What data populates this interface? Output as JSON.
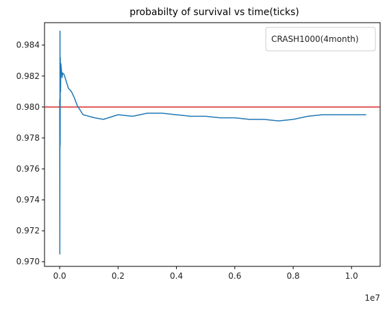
{
  "chart_data": {
    "type": "line",
    "title": "probabilty of survival vs time(ticks)",
    "xlabel": "",
    "ylabel": "",
    "x_offset_text": "1e7",
    "xlim": [
      -0.052,
      1.098
    ],
    "ylim": [
      0.9697,
      0.98545
    ],
    "x_ticks": [
      0.0,
      0.2,
      0.4,
      0.6,
      0.8,
      1.0
    ],
    "x_tick_labels": [
      "0.0",
      "0.2",
      "0.4",
      "0.6",
      "0.8",
      "1.0"
    ],
    "y_ticks": [
      0.97,
      0.972,
      0.974,
      0.976,
      0.978,
      0.98,
      0.982,
      0.984
    ],
    "y_tick_labels": [
      "0.970",
      "0.972",
      "0.974",
      "0.976",
      "0.978",
      "0.980",
      "0.982",
      "0.984"
    ],
    "grid": false,
    "legend_position": "top-right",
    "legend_label": "CRASH1000(4month)",
    "colors": {
      "series": "#1f77b4",
      "reference": "#d62728"
    },
    "reference_line": {
      "y": 0.98
    },
    "series": [
      {
        "name": "CRASH1000(4month)",
        "x": [
          0.0,
          0.0005,
          0.001,
          0.0015,
          0.002,
          0.003,
          0.004,
          0.006,
          0.008,
          0.01,
          0.015,
          0.02,
          0.025,
          0.03,
          0.04,
          0.05,
          0.06,
          0.08,
          0.1,
          0.12,
          0.15,
          0.2,
          0.25,
          0.3,
          0.35,
          0.4,
          0.45,
          0.5,
          0.55,
          0.6,
          0.65,
          0.7,
          0.75,
          0.8,
          0.85,
          0.9,
          0.95,
          1.0,
          1.05
        ],
        "y": [
          0.9805,
          0.9705,
          0.9849,
          0.9775,
          0.9832,
          0.981,
          0.9828,
          0.9824,
          0.9819,
          0.9822,
          0.9821,
          0.9818,
          0.9815,
          0.9812,
          0.981,
          0.9806,
          0.9801,
          0.9795,
          0.9794,
          0.9793,
          0.9792,
          0.9795,
          0.9794,
          0.9796,
          0.9796,
          0.9795,
          0.9794,
          0.9794,
          0.9793,
          0.9793,
          0.9792,
          0.9792,
          0.9791,
          0.9792,
          0.9794,
          0.9795,
          0.9795,
          0.9795,
          0.9795
        ]
      }
    ]
  }
}
